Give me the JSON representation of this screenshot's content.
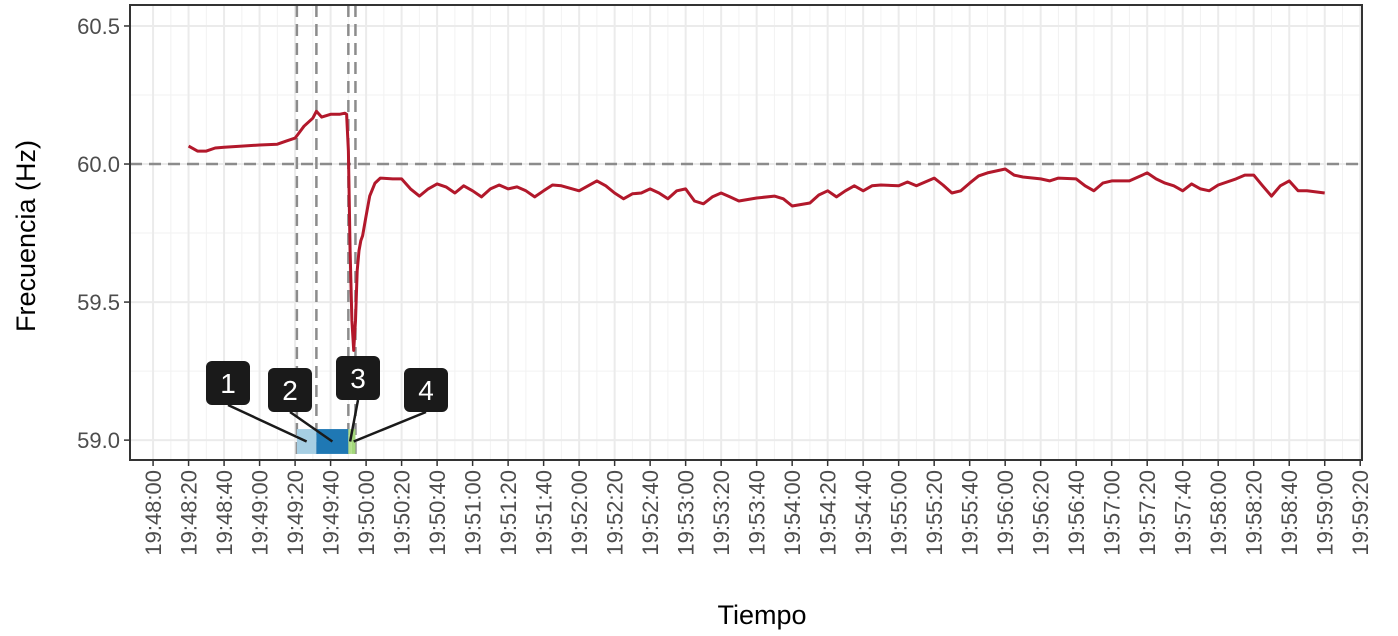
{
  "chart_data": {
    "type": "line",
    "y_label": "Frecuencia (Hz)",
    "x_label": "Tiempo",
    "xlim": [
      "19:47:47",
      "19:59:21"
    ],
    "ylim": [
      58.928,
      60.576
    ],
    "yticks": [
      {
        "value": 59.0,
        "label": "59.0"
      },
      59.5,
      {
        "value": 60.0,
        "label": "60.0"
      },
      60.5
    ],
    "xticks": [
      "19:48:00",
      "19:48:20",
      "19:48:40",
      "19:49:00",
      "19:49:20",
      "19:49:40",
      "19:50:00",
      "19:50:20",
      "19:50:40",
      "19:51:00",
      "19:51:20",
      "19:51:40",
      "19:52:00",
      "19:52:20",
      "19:52:40",
      "19:53:00",
      "19:53:20",
      "19:53:40",
      "19:54:00",
      "19:54:20",
      "19:54:40",
      "19:55:00",
      "19:55:20",
      "19:55:40",
      "19:56:00",
      "19:56:20",
      "19:56:40",
      "19:57:00",
      "19:57:20",
      "19:57:40",
      "19:58:00",
      "19:58:20",
      "19:58:40",
      "19:59:00",
      "19:59:20"
    ],
    "grid": true,
    "hline": 60.0,
    "vlines": [
      "19:49:21",
      "19:49:32",
      "19:49:50",
      "19:49:54"
    ],
    "phases": [
      {
        "label": "1",
        "start": "19:49:21",
        "end": "19:49:32",
        "color": "#a6cee3"
      },
      {
        "label": "2",
        "start": "19:49:32",
        "end": "19:49:50",
        "color": "#1f78b4"
      },
      {
        "label": "3",
        "start": "19:49:50",
        "end": "19:49:52",
        "color": "#b2df8a"
      },
      {
        "label": "4",
        "start": "19:49:52",
        "end": "19:49:54",
        "color": "#a3d87a"
      }
    ],
    "phase_ylim": [
      58.95,
      59.04
    ],
    "series": [
      {
        "color": "#b2182b",
        "x": [
          "19:48:20",
          "19:48:25",
          "19:48:30",
          "19:48:35",
          "19:48:40",
          "19:48:50",
          "19:49:00",
          "19:49:10",
          "19:49:15",
          "19:49:20",
          "19:49:25",
          "19:49:30",
          "19:49:32",
          "19:49:35",
          "19:49:40",
          "19:49:45",
          "19:49:48",
          "19:49:49",
          "19:49:50",
          "19:49:51",
          "19:49:52",
          "19:49:53",
          "19:49:54",
          "19:49:55",
          "19:49:56",
          "19:49:57",
          "19:49:58",
          "19:50:00",
          "19:50:02",
          "19:50:05",
          "19:50:08",
          "19:50:15",
          "19:50:20",
          "19:50:25",
          "19:50:30",
          "19:50:35",
          "19:50:40",
          "19:50:45",
          "19:50:50",
          "19:50:55",
          "19:51:00",
          "19:51:05",
          "19:51:10",
          "19:51:15",
          "19:51:20",
          "19:51:25",
          "19:51:30",
          "19:51:35",
          "19:51:40",
          "19:51:45",
          "19:51:50",
          "19:52:00",
          "19:52:10",
          "19:52:15",
          "19:52:20",
          "19:52:25",
          "19:52:30",
          "19:52:35",
          "19:52:40",
          "19:52:45",
          "19:52:50",
          "19:52:55",
          "19:53:00",
          "19:53:05",
          "19:53:10",
          "19:53:15",
          "19:53:20",
          "19:53:25",
          "19:53:30",
          "19:53:40",
          "19:53:50",
          "19:53:55",
          "19:54:00",
          "19:54:10",
          "19:54:15",
          "19:54:20",
          "19:54:25",
          "19:54:30",
          "19:54:35",
          "19:54:40",
          "19:54:45",
          "19:54:50",
          "19:55:00",
          "19:55:05",
          "19:55:10",
          "19:55:20",
          "19:55:25",
          "19:55:30",
          "19:55:35",
          "19:55:40",
          "19:55:45",
          "19:55:50",
          "19:56:00",
          "19:56:05",
          "19:56:10",
          "19:56:20",
          "19:56:25",
          "19:56:30",
          "19:56:40",
          "19:56:45",
          "19:56:50",
          "19:56:55",
          "19:57:00",
          "19:57:10",
          "19:57:20",
          "19:57:25",
          "19:57:30",
          "19:57:35",
          "19:57:40",
          "19:57:45",
          "19:57:50",
          "19:57:55",
          "19:58:00",
          "19:58:10",
          "19:58:15",
          "19:58:20",
          "19:58:25",
          "19:58:30",
          "19:58:35",
          "19:58:40",
          "19:58:45",
          "19:58:50",
          "19:59:00"
        ],
        "values": [
          60.065,
          60.047,
          60.047,
          60.058,
          60.061,
          60.065,
          60.069,
          60.072,
          60.083,
          60.094,
          60.137,
          60.166,
          60.191,
          60.17,
          60.18,
          60.18,
          60.184,
          60.18,
          60.047,
          59.686,
          59.433,
          59.325,
          59.433,
          59.614,
          59.686,
          59.722,
          59.74,
          59.812,
          59.884,
          59.931,
          59.949,
          59.946,
          59.946,
          59.91,
          59.884,
          59.91,
          59.928,
          59.917,
          59.895,
          59.921,
          59.903,
          59.881,
          59.91,
          59.924,
          59.91,
          59.917,
          59.903,
          59.881,
          59.903,
          59.924,
          59.921,
          59.903,
          59.939,
          59.921,
          59.895,
          59.874,
          59.892,
          59.895,
          59.91,
          59.895,
          59.874,
          59.903,
          59.91,
          59.866,
          59.856,
          59.881,
          59.895,
          59.881,
          59.866,
          59.877,
          59.884,
          59.874,
          59.848,
          59.859,
          59.888,
          59.903,
          59.881,
          59.903,
          59.921,
          59.903,
          59.921,
          59.924,
          59.921,
          59.935,
          59.921,
          59.949,
          59.924,
          59.895,
          59.903,
          59.931,
          59.957,
          59.968,
          59.982,
          59.96,
          59.953,
          59.946,
          59.939,
          59.949,
          59.946,
          59.921,
          59.903,
          59.931,
          59.939,
          59.939,
          59.968,
          59.946,
          59.931,
          59.921,
          59.903,
          59.928,
          59.91,
          59.903,
          59.924,
          59.946,
          59.96,
          59.96,
          59.921,
          59.884,
          59.921,
          59.939,
          59.903,
          59.903,
          59.895
        ]
      }
    ]
  }
}
